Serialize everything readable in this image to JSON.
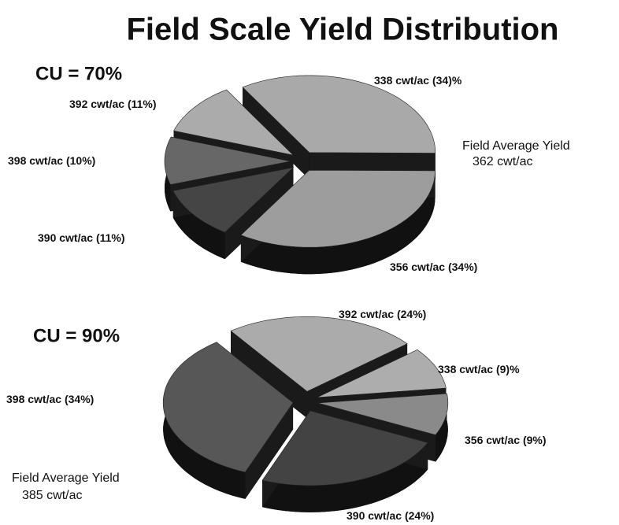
{
  "title": "Field Scale Yield Distribution",
  "chart_data": [
    {
      "type": "pie",
      "title": "CU = 70%",
      "categories": [
        "338 cwt/ac",
        "356 cwt/ac",
        "390 cwt/ac",
        "398 cwt/ac",
        "392 cwt/ac"
      ],
      "values": [
        34,
        34,
        11,
        10,
        11
      ],
      "value_labels": [
        "(34)%",
        "(34%)",
        "(11%)",
        "(10%)",
        "(11%)"
      ],
      "colors": [
        "#a9a9a9",
        "#9d9d9d",
        "#454545",
        "#676767",
        "#ababab"
      ],
      "annotation": [
        "Field Average Yield",
        "362 cwt/ac"
      ]
    },
    {
      "type": "pie",
      "title": "CU = 90%",
      "categories": [
        "392 cwt/ac",
        "338 cwt/ac",
        "356 cwt/ac",
        "390 cwt/ac",
        "398 cwt/ac"
      ],
      "values": [
        24,
        9,
        9,
        24,
        34
      ],
      "value_labels": [
        "(24%)",
        "(9)%",
        "(9%)",
        "(24%)",
        "(34%)"
      ],
      "colors": [
        "#ababab",
        "#adadad",
        "#8a8a8a",
        "#434343",
        "#575757"
      ],
      "annotation": [
        "Field Average Yield",
        "385 cwt/ac"
      ]
    }
  ]
}
